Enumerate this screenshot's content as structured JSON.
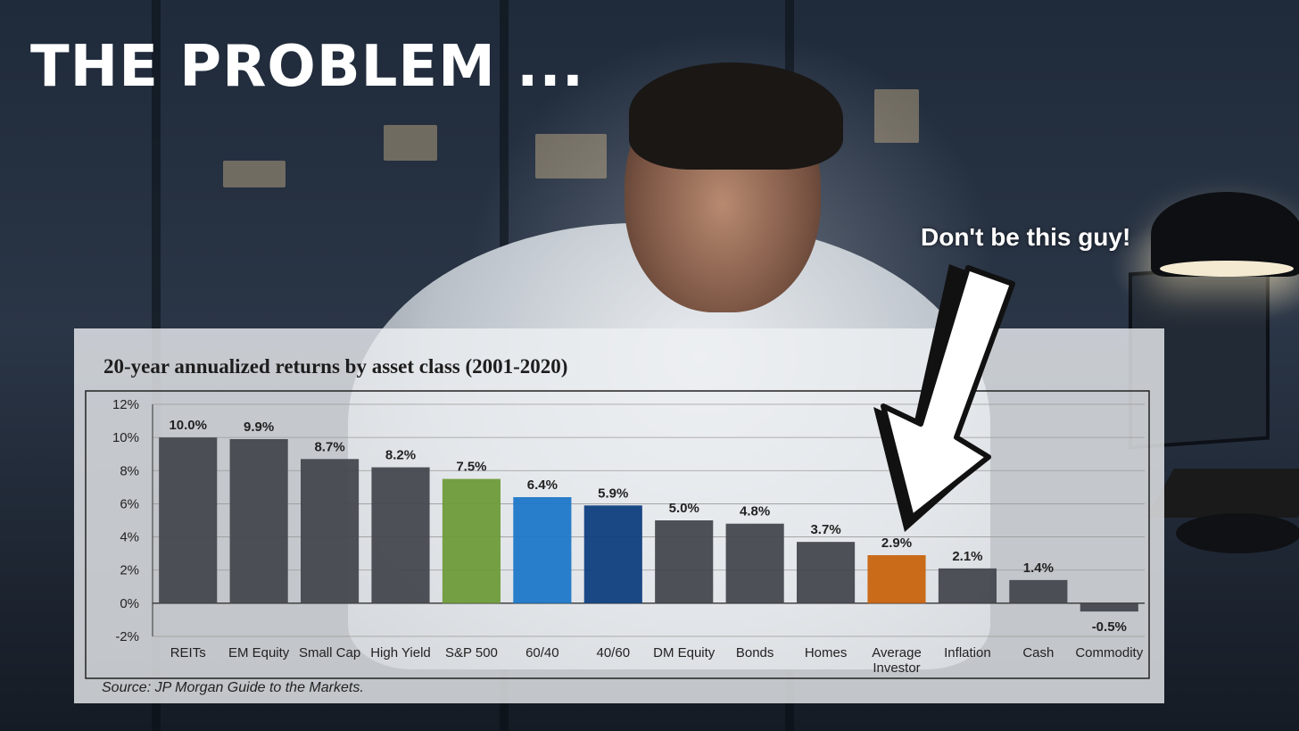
{
  "headline": "THE PROBLEM ...",
  "callout": "Don't be this guy!",
  "chart_data": {
    "type": "bar",
    "title": "20-year annualized returns by asset class (2001-2020)",
    "source": "Source: JP Morgan Guide to the Markets.",
    "categories": [
      "REITs",
      "EM Equity",
      "Small Cap",
      "High Yield",
      "S&P 500",
      "60/40",
      "40/60",
      "DM Equity",
      "Bonds",
      "Homes",
      "Average Investor",
      "Inflation",
      "Cash",
      "Commodity"
    ],
    "values": [
      10.0,
      9.9,
      8.7,
      8.2,
      7.5,
      6.4,
      5.9,
      5.0,
      4.8,
      3.7,
      2.9,
      2.1,
      1.4,
      -0.5
    ],
    "value_labels": [
      "10.0%",
      "9.9%",
      "8.7%",
      "8.2%",
      "7.5%",
      "6.4%",
      "5.9%",
      "5.0%",
      "4.8%",
      "3.7%",
      "2.9%",
      "2.1%",
      "1.4%",
      "-0.5%"
    ],
    "bar_colors": [
      "#44484e",
      "#44484e",
      "#44484e",
      "#44484e",
      "#6e9b3a",
      "#1e78c8",
      "#0f3f80",
      "#44484e",
      "#44484e",
      "#44484e",
      "#c8640f",
      "#44484e",
      "#44484e",
      "#44484e"
    ],
    "yticks": [
      "12%",
      "10%",
      "8%",
      "6%",
      "4%",
      "2%",
      "0%",
      "-2%"
    ],
    "ylim": [
      -2,
      12
    ],
    "grid": true,
    "legend": "none"
  }
}
